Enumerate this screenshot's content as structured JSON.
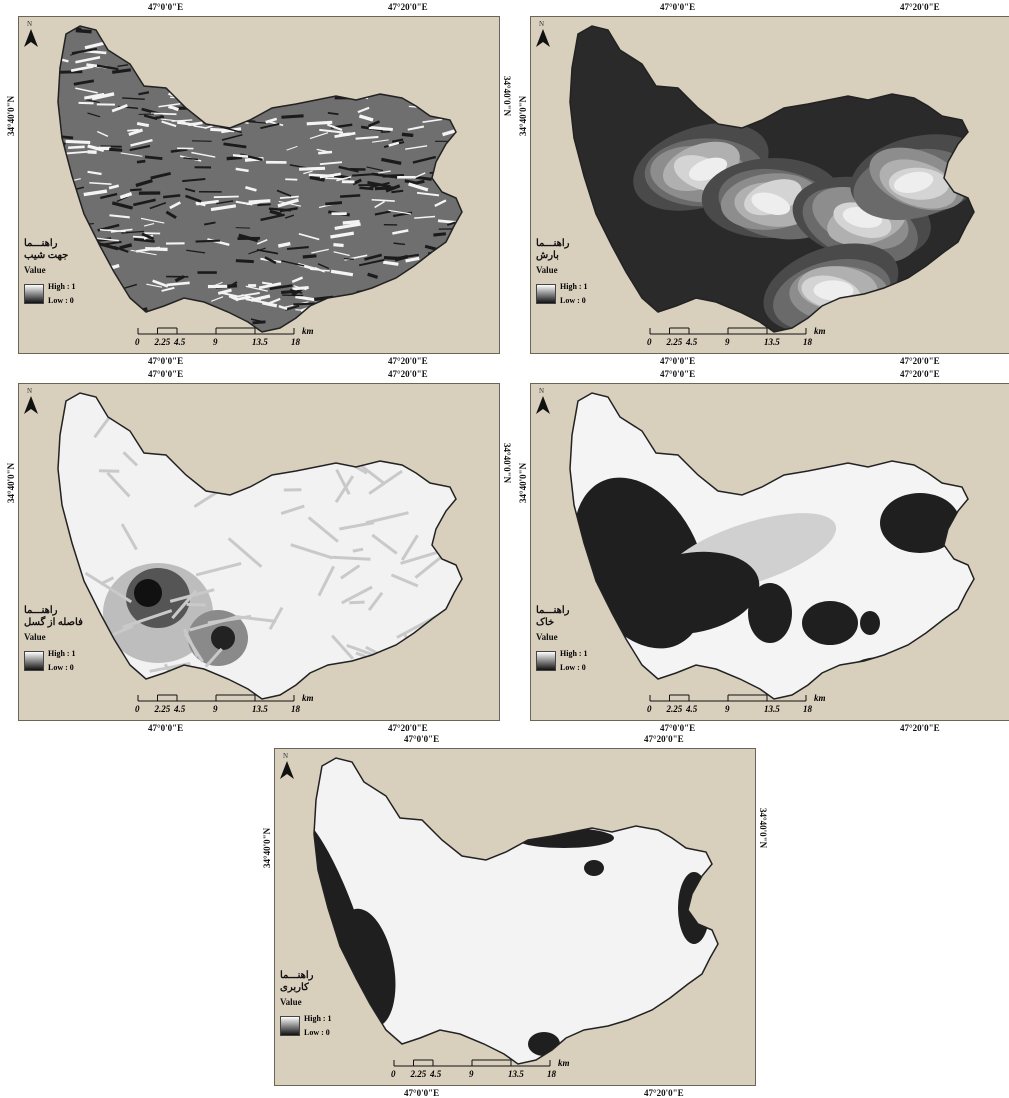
{
  "shared": {
    "lon_left": "47°0'0\"E",
    "lon_right": "47°20'0\"E",
    "lat": "34°40'0\"N",
    "north": "N",
    "value_label": "Value",
    "high_label": "High : 1",
    "low_label": "Low : 0",
    "legend_heading": "راهنـــما",
    "scale_ticks": [
      "0",
      "2.25",
      "4.5",
      "9",
      "13.5",
      "18"
    ],
    "scale_unit": "km"
  },
  "panels": [
    {
      "id": "aspect",
      "legend_name": "جهت شیب",
      "style": "rugged"
    },
    {
      "id": "precipitation",
      "legend_name": "بارش",
      "style": "precip"
    },
    {
      "id": "fault-distance",
      "legend_name": "فاصله از گسل",
      "style": "distance"
    },
    {
      "id": "soil",
      "legend_name": "خاک",
      "style": "soil"
    },
    {
      "id": "landuse",
      "legend_name": "کاربری",
      "style": "landuse"
    }
  ],
  "colors": {
    "background_tan": "#d9cfbd",
    "frame": "#6b6558",
    "dark": "#1e1e1e",
    "light": "#f2f2f2"
  }
}
